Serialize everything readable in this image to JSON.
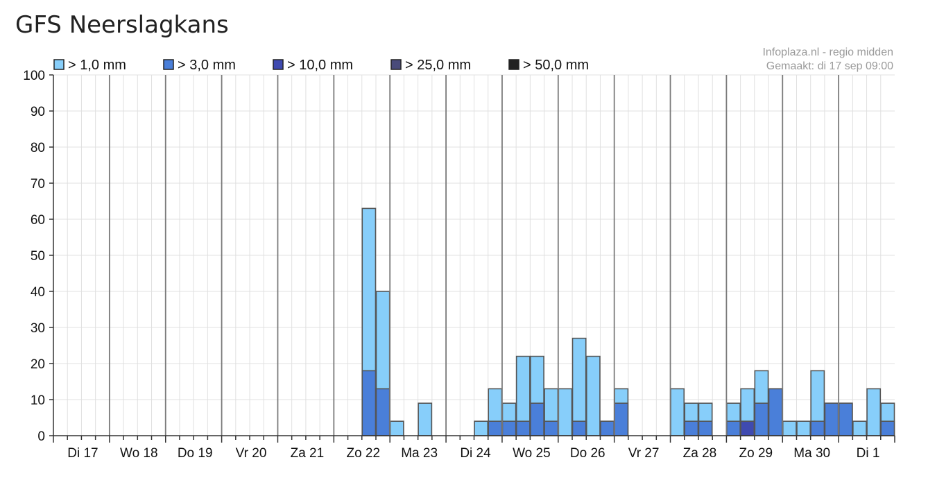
{
  "page": {
    "title": "GFS Neerslagkans"
  },
  "credits": {
    "line1": "Infoplaza.nl - regio midden",
    "line2": "Gemaakt: di 17 sep 09:00"
  },
  "colors": {
    "s1": "#87cefa",
    "s3": "#4a7fd9",
    "s10": "#3f4ab0",
    "s25": "#494b7a",
    "s50": "#222222",
    "grid": "#e0e0e0",
    "day_line": "#7a7a7a",
    "bar_outline": "#555555"
  },
  "chart_data": {
    "type": "bar",
    "stacking": "overlaid",
    "ylim": [
      0,
      100
    ],
    "yticks": [
      0,
      10,
      20,
      30,
      40,
      50,
      60,
      70,
      80,
      90,
      100
    ],
    "slots_per_day": 4,
    "days": [
      "Di 17",
      "Wo 18",
      "Do 19",
      "Vr 20",
      "Za 21",
      "Zo 22",
      "Ma 23",
      "Di 24",
      "Wo 25",
      "Do 26",
      "Vr 27",
      "Za 28",
      "Zo 29",
      "Ma 30",
      "Di 1"
    ],
    "legend_position": "top",
    "series": [
      {
        "name": "> 1,0 mm",
        "color_key": "s1",
        "values": [
          0,
          0,
          0,
          0,
          0,
          0,
          0,
          0,
          0,
          0,
          0,
          0,
          0,
          0,
          0,
          0,
          0,
          0,
          0,
          0,
          0,
          0,
          63,
          40,
          4,
          0,
          9,
          0,
          0,
          0,
          4,
          13,
          9,
          22,
          22,
          13,
          13,
          27,
          22,
          4,
          13,
          0,
          0,
          0,
          13,
          9,
          9,
          0,
          9,
          13,
          18,
          13,
          4,
          4,
          18,
          9,
          9,
          4,
          13,
          9
        ]
      },
      {
        "name": "> 3,0 mm",
        "color_key": "s3",
        "values": [
          0,
          0,
          0,
          0,
          0,
          0,
          0,
          0,
          0,
          0,
          0,
          0,
          0,
          0,
          0,
          0,
          0,
          0,
          0,
          0,
          0,
          0,
          18,
          13,
          0,
          0,
          0,
          0,
          0,
          0,
          0,
          4,
          4,
          4,
          9,
          4,
          0,
          4,
          0,
          4,
          9,
          0,
          0,
          0,
          0,
          4,
          4,
          0,
          4,
          4,
          9,
          13,
          0,
          0,
          4,
          9,
          9,
          0,
          0,
          4
        ]
      },
      {
        "name": "> 10,0 mm",
        "color_key": "s10",
        "values": [
          0,
          0,
          0,
          0,
          0,
          0,
          0,
          0,
          0,
          0,
          0,
          0,
          0,
          0,
          0,
          0,
          0,
          0,
          0,
          0,
          0,
          0,
          0,
          0,
          0,
          0,
          0,
          0,
          0,
          0,
          0,
          0,
          0,
          0,
          0,
          0,
          0,
          0,
          0,
          0,
          0,
          0,
          0,
          0,
          0,
          0,
          0,
          0,
          0,
          4,
          0,
          0,
          0,
          0,
          0,
          0,
          0,
          0,
          0,
          0
        ]
      },
      {
        "name": "> 25,0 mm",
        "color_key": "s25",
        "values": []
      },
      {
        "name": "> 50,0 mm",
        "color_key": "s50",
        "values": []
      }
    ]
  }
}
